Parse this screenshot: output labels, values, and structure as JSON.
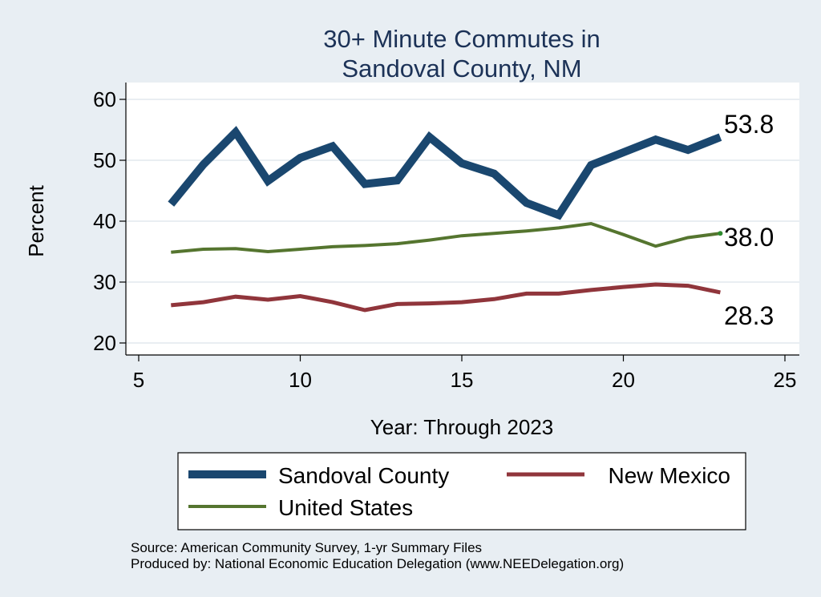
{
  "chart_data": {
    "type": "line",
    "title": [
      "30+ Minute Commutes in",
      "Sandoval County, NM"
    ],
    "xlabel": "Year: Through 2023",
    "ylabel": "Percent",
    "xlim": [
      5,
      25
    ],
    "ylim": [
      18,
      62
    ],
    "xticks": [
      5,
      10,
      15,
      20,
      25
    ],
    "yticks": [
      20,
      30,
      40,
      50,
      60
    ],
    "grid": true,
    "legend_position": "bottom",
    "series": [
      {
        "name": "Sandoval County",
        "color": "#1a476f",
        "width": "thick",
        "x": [
          6,
          7,
          8,
          9,
          10,
          11,
          12,
          13,
          14,
          15,
          16,
          17,
          18,
          19,
          20,
          21,
          22,
          23
        ],
        "values": [
          42.8,
          49.3,
          54.6,
          46.6,
          50.4,
          52.3,
          46.1,
          46.7,
          53.8,
          49.5,
          47.8,
          43.0,
          41.0,
          49.2,
          51.3,
          53.4,
          51.7,
          53.8
        ],
        "end_label": "53.8"
      },
      {
        "name": "New Mexico",
        "color": "#90353b",
        "width": "medium",
        "x": [
          6,
          7,
          8,
          9,
          10,
          11,
          12,
          13,
          14,
          15,
          16,
          17,
          18,
          19,
          20,
          21,
          22,
          23
        ],
        "values": [
          26.2,
          26.7,
          27.6,
          27.1,
          27.7,
          26.7,
          25.4,
          26.4,
          26.5,
          26.7,
          27.2,
          28.1,
          28.1,
          28.7,
          29.2,
          29.6,
          29.4,
          28.3
        ],
        "end_label": "28.3"
      },
      {
        "name": "United States",
        "color": "#55752f",
        "width": "thin",
        "x": [
          6,
          7,
          8,
          9,
          10,
          11,
          12,
          13,
          14,
          15,
          16,
          17,
          18,
          19,
          20,
          21,
          22,
          23
        ],
        "values": [
          34.9,
          35.4,
          35.5,
          35.0,
          35.4,
          35.8,
          36.0,
          36.3,
          36.9,
          37.6,
          38.0,
          38.4,
          38.9,
          39.6,
          37.8,
          35.9,
          37.3,
          38.0
        ],
        "end_label": "38.0"
      }
    ]
  },
  "source": {
    "line1": "Source: American Community Survey, 1-yr Summary Files",
    "line2": "Produced by: National Economic Education Delegation (www.NEEDelegation.org)"
  }
}
